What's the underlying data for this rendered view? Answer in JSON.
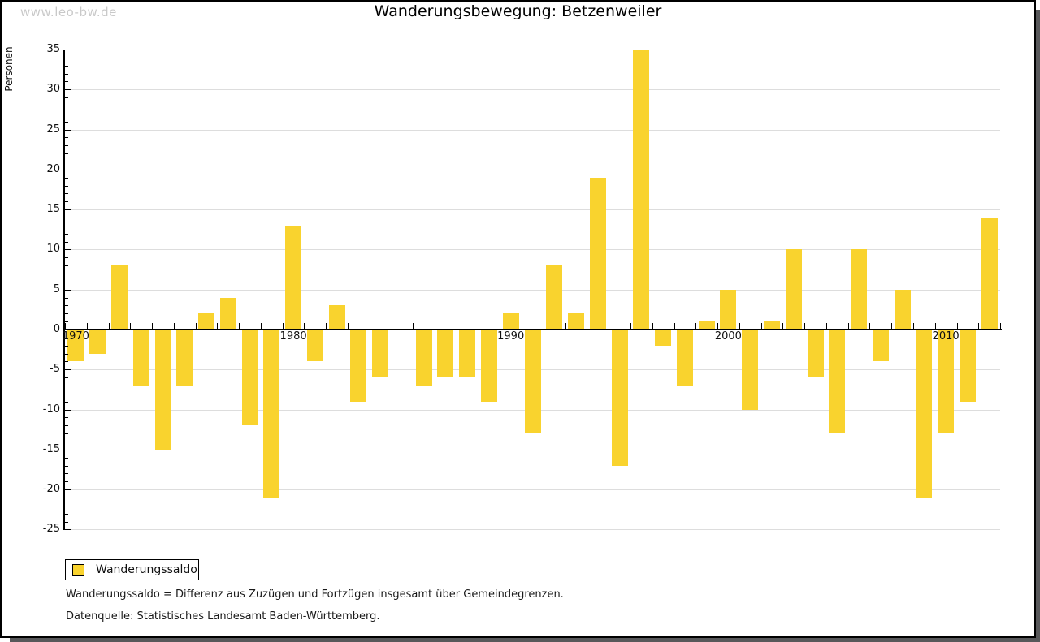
{
  "watermark": "www.leo-bw.de",
  "title": "Wanderungsbewegung: Betzenweiler",
  "legend": {
    "label": "Wanderungssaldo"
  },
  "footnotes": [
    "Wanderungssaldo = Differenz aus Zuzügen und Fortzügen insgesamt über Gemeindegrenzen.",
    "Datenquelle: Statistisches Landesamt Baden-Württemberg."
  ],
  "colors": {
    "bar": "#F9D32E",
    "grid": "#DDDDDD",
    "axis": "#000000",
    "text": "#111111",
    "watermark": "#C9C9C9",
    "shadow": "#58585A",
    "frame_border": "#000000"
  },
  "chart_data": {
    "type": "bar",
    "title": "Wanderungsbewegung: Betzenweiler",
    "series_name": "Wanderungssaldo",
    "ylabel": "Personen",
    "xlabel": "",
    "ylim": [
      -25,
      35
    ],
    "ytick_step": 5,
    "grid": true,
    "legend_position": "bottom-left",
    "xticks_labeled": [
      1970,
      1980,
      1990,
      2000,
      2010
    ],
    "x": [
      1970,
      1971,
      1972,
      1973,
      1974,
      1975,
      1976,
      1977,
      1978,
      1979,
      1980,
      1981,
      1982,
      1983,
      1984,
      1985,
      1986,
      1987,
      1988,
      1989,
      1990,
      1991,
      1992,
      1993,
      1994,
      1995,
      1996,
      1997,
      1998,
      1999,
      2000,
      2001,
      2002,
      2003,
      2004,
      2005,
      2006,
      2007,
      2008,
      2009,
      2010,
      2011,
      2012
    ],
    "values": [
      -4,
      -3,
      8,
      -7,
      -15,
      -7,
      2,
      4,
      -12,
      -21,
      13,
      -4,
      3,
      -9,
      -6,
      0,
      -7,
      -6,
      -6,
      -9,
      2,
      -13,
      8,
      2,
      19,
      -17,
      35,
      -2,
      -7,
      1,
      5,
      -10,
      1,
      10,
      -6,
      -13,
      10,
      -4,
      5,
      -21,
      -13,
      -9,
      14
    ]
  }
}
